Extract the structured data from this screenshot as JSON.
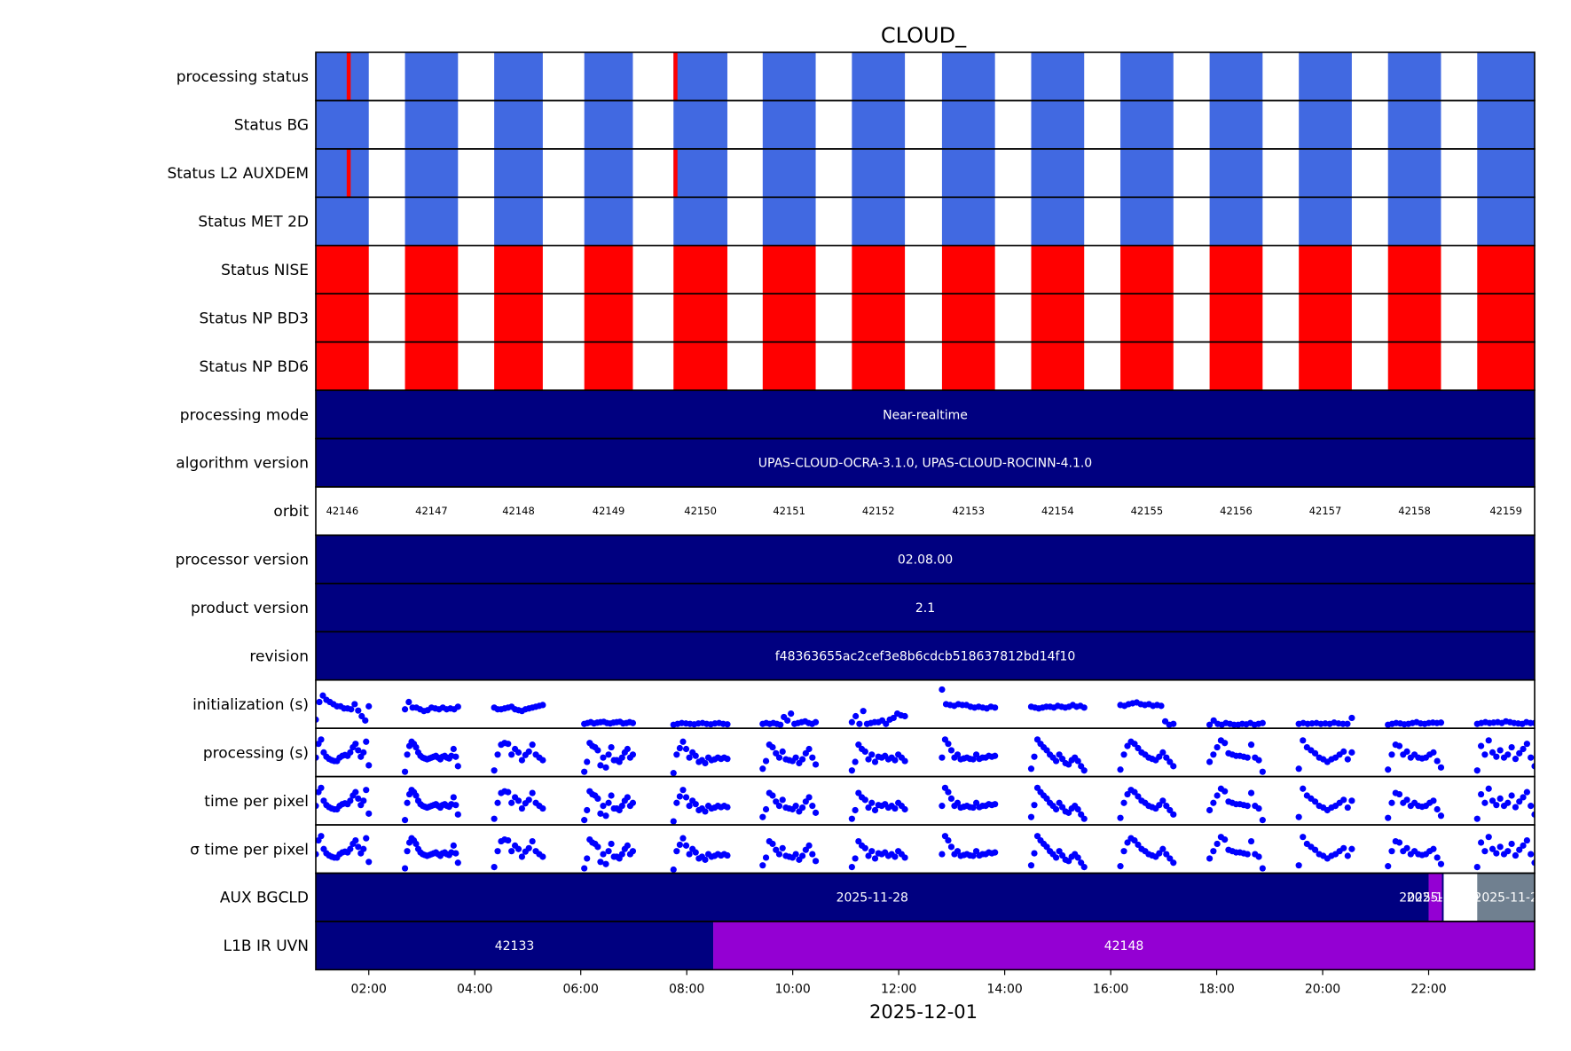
{
  "chart_data": {
    "type": "timeline",
    "title": "CLOUD_",
    "xlabel": "2025-12-01",
    "xlim": [
      "2025-12-01T01:00",
      "2025-12-02T00:00"
    ],
    "x_ticks": [
      "02:00",
      "04:00",
      "06:00",
      "08:00",
      "10:00",
      "12:00",
      "14:00",
      "16:00",
      "18:00",
      "20:00",
      "22:00"
    ],
    "grid": false,
    "colors": {
      "ok": "#4169e1",
      "fail": "#ff0000",
      "category": "#000080",
      "category_alt": "#9400d3",
      "category_gray": "#708090",
      "scatter": "#0000ff",
      "frame": "#000000"
    },
    "orbits": [
      {
        "orbit": "42146",
        "start": "01:00",
        "end": "02:00"
      },
      {
        "orbit": "42147",
        "start": "02:41",
        "end": "03:41"
      },
      {
        "orbit": "42148",
        "start": "04:22",
        "end": "05:17"
      },
      {
        "orbit": "42149",
        "start": "06:04",
        "end": "06:59"
      },
      {
        "orbit": "42150",
        "start": "07:45",
        "end": "08:46"
      },
      {
        "orbit": "42151",
        "start": "09:26",
        "end": "10:26"
      },
      {
        "orbit": "42152",
        "start": "11:07",
        "end": "12:07"
      },
      {
        "orbit": "42153",
        "start": "12:49",
        "end": "13:49"
      },
      {
        "orbit": "42154",
        "start": "14:30",
        "end": "15:30"
      },
      {
        "orbit": "42155",
        "start": "16:11",
        "end": "17:11"
      },
      {
        "orbit": "42156",
        "start": "17:52",
        "end": "18:52"
      },
      {
        "orbit": "42157",
        "start": "19:33",
        "end": "20:33"
      },
      {
        "orbit": "42158",
        "start": "21:14",
        "end": "22:14"
      },
      {
        "orbit": "42159",
        "start": "22:55",
        "end": "24:00"
      }
    ],
    "rows": [
      {
        "label": "processing status",
        "kind": "status",
        "color": "ok",
        "fail_marks": [
          "01:37",
          "07:47"
        ]
      },
      {
        "label": "Status BG",
        "kind": "status",
        "color": "ok",
        "fail_marks": []
      },
      {
        "label": "Status L2  AUXDEM",
        "kind": "status",
        "color": "ok",
        "fail_marks": [
          "01:37",
          "07:47"
        ]
      },
      {
        "label": "Status MET 2D",
        "kind": "status",
        "color": "ok",
        "fail_marks": []
      },
      {
        "label": "Status NISE",
        "kind": "status",
        "color": "fail",
        "fail_marks": []
      },
      {
        "label": "Status NP BD3",
        "kind": "status",
        "color": "fail",
        "fail_marks": []
      },
      {
        "label": "Status NP BD6",
        "kind": "status",
        "color": "fail",
        "fail_marks": []
      },
      {
        "label": "processing mode",
        "kind": "category",
        "segments": [
          {
            "start": "01:00",
            "end": "24:00",
            "text": "Near-realtime",
            "color": "category"
          }
        ]
      },
      {
        "label": "algorithm version",
        "kind": "category",
        "segments": [
          {
            "start": "01:00",
            "end": "24:00",
            "text": "UPAS-CLOUD-OCRA-3.1.0, UPAS-CLOUD-ROCINN-4.1.0",
            "color": "category"
          }
        ]
      },
      {
        "label": "orbit",
        "kind": "orbit"
      },
      {
        "label": "processor version",
        "kind": "category",
        "segments": [
          {
            "start": "01:00",
            "end": "24:00",
            "text": "02.08.00",
            "color": "category"
          }
        ]
      },
      {
        "label": "product version",
        "kind": "category",
        "segments": [
          {
            "start": "01:00",
            "end": "24:00",
            "text": "2.1",
            "color": "category"
          }
        ]
      },
      {
        "label": "revision",
        "kind": "category",
        "segments": [
          {
            "start": "01:00",
            "end": "24:00",
            "text": "f48363655ac2cef3e8b6cdcb518637812bd14f10",
            "color": "category"
          }
        ]
      },
      {
        "label": "initialization (s)",
        "kind": "scatter",
        "pattern": "init"
      },
      {
        "label": "processing (s)",
        "kind": "scatter",
        "pattern": "vshape"
      },
      {
        "label": "time per pixel",
        "kind": "scatter",
        "pattern": "vshape"
      },
      {
        "label": "σ time per pixel",
        "kind": "scatter",
        "pattern": "vshape"
      },
      {
        "label": "AUX BGCLD",
        "kind": "category",
        "segments": [
          {
            "start": "01:00",
            "end": "22:00",
            "text": "2025-11-28",
            "color": "category"
          },
          {
            "start": "22:00",
            "end": "22:15",
            "text": "2025-11-29",
            "color": "category_alt"
          },
          {
            "start": "22:15",
            "end": "22:17",
            "text": "2025-11-30",
            "color": "category"
          },
          {
            "start": "22:55",
            "end": "24:00",
            "text": "2025-11-2",
            "color": "category_gray"
          }
        ]
      },
      {
        "label": "L1B IR UVN",
        "kind": "category",
        "segments": [
          {
            "start": "01:00",
            "end": "08:30",
            "text": "42133",
            "color": "category"
          },
          {
            "start": "08:30",
            "end": "24:00",
            "text": "42148",
            "color": "category_alt"
          }
        ]
      }
    ],
    "scatter_series": {
      "init": [
        [
          0.86,
          0.45,
          0.3,
          0.4,
          0.45,
          0.5,
          0.55,
          0.55,
          0.6,
          0.6,
          0.62,
          0.5,
          0.65,
          0.78,
          0.88,
          0.55
        ],
        [
          0.62,
          0.45,
          0.58,
          0.58,
          0.62,
          0.66,
          0.64,
          0.58,
          0.6,
          0.62,
          0.58,
          0.62,
          0.6,
          0.62,
          0.56
        ],
        [
          0.58,
          0.62,
          0.62,
          0.6,
          0.58,
          0.56,
          0.62,
          0.64,
          0.66,
          0.62,
          0.6,
          0.58,
          0.56,
          0.54,
          0.52
        ],
        [
          0.96,
          0.94,
          0.92,
          0.95,
          0.93,
          0.92,
          0.91,
          0.94,
          0.95,
          0.93,
          0.92,
          0.91,
          0.95,
          0.94,
          0.92,
          0.94
        ],
        [
          0.98,
          0.96,
          0.94,
          0.95,
          0.96,
          0.97,
          0.95,
          0.94,
          0.96,
          0.97,
          0.95,
          0.94,
          0.96,
          0.97
        ],
        [
          0.96,
          0.94,
          0.96,
          0.94,
          0.96,
          0.98,
          0.8,
          0.88,
          0.72,
          0.96,
          0.94,
          0.92,
          0.9,
          0.94,
          0.96,
          0.92
        ],
        [
          0.92,
          0.78,
          0.96,
          0.66,
          0.96,
          0.94,
          0.92,
          0.92,
          0.88,
          0.96,
          0.86,
          0.82,
          0.72,
          0.76,
          0.78
        ],
        [
          0.16,
          0.5,
          0.52,
          0.54,
          0.5,
          0.52,
          0.52,
          0.56,
          0.58,
          0.56,
          0.58,
          0.6,
          0.56,
          0.58
        ],
        [
          0.56,
          0.58,
          0.6,
          0.58,
          0.56,
          0.56,
          0.58,
          0.54,
          0.56,
          0.58,
          0.56,
          0.52,
          0.56,
          0.54,
          0.58
        ],
        [
          0.52,
          0.54,
          0.5,
          0.48,
          0.46,
          0.5,
          0.52,
          0.5,
          0.54,
          0.52,
          0.54,
          0.9,
          0.98,
          0.96
        ],
        [
          0.98,
          0.88,
          0.96,
          0.98,
          0.94,
          0.96,
          0.98,
          0.98,
          0.96,
          0.97,
          0.94,
          0.98,
          0.96,
          0.94
        ],
        [
          0.96,
          0.94,
          0.96,
          0.95,
          0.94,
          0.96,
          0.95,
          0.96,
          0.93,
          0.95,
          0.96,
          0.96,
          0.82
        ],
        [
          0.98,
          0.96,
          0.94,
          0.95,
          0.97,
          0.96,
          0.94,
          0.92,
          0.95,
          0.96,
          0.94,
          0.93,
          0.94,
          0.93
        ],
        [
          0.96,
          0.94,
          0.92,
          0.94,
          0.93,
          0.92,
          0.94,
          0.9,
          0.92,
          0.94,
          0.95,
          0.96,
          0.92,
          0.94,
          0.94
        ]
      ],
      "vshape": [
        [
          0.62,
          0.3,
          0.2,
          0.5,
          0.6,
          0.65,
          0.68,
          0.7,
          0.7,
          0.62,
          0.58,
          0.56,
          0.58,
          0.5,
          0.38,
          0.3,
          0.45,
          0.6,
          0.5,
          0.25,
          0.8
        ],
        [
          0.95,
          0.55,
          0.35,
          0.25,
          0.3,
          0.38,
          0.5,
          0.58,
          0.62,
          0.64,
          0.66,
          0.64,
          0.62,
          0.6,
          0.58,
          0.62,
          0.66,
          0.6,
          0.58,
          0.62,
          0.64,
          0.58,
          0.42,
          0.6,
          0.82
        ],
        [
          0.92,
          0.55,
          0.32,
          0.28,
          0.3,
          0.55,
          0.42,
          0.5,
          0.68,
          0.56,
          0.48,
          0.32,
          0.55,
          0.62,
          0.68
        ],
        [
          0.95,
          0.72,
          0.28,
          0.35,
          0.38,
          0.45,
          0.8,
          0.62,
          0.85,
          0.55,
          0.38,
          0.68,
          0.68,
          0.72,
          0.62,
          0.5,
          0.42,
          0.62,
          0.55
        ],
        [
          0.98,
          0.55,
          0.4,
          0.25,
          0.42,
          0.62,
          0.5,
          0.58,
          0.72,
          0.68,
          0.75,
          0.62,
          0.68,
          0.66,
          0.62,
          0.65,
          0.62,
          0.65
        ],
        [
          0.88,
          0.7,
          0.32,
          0.38,
          0.52,
          0.62,
          0.48,
          0.66,
          0.68,
          0.7,
          0.62,
          0.75,
          0.66,
          0.52,
          0.42,
          0.62,
          0.78
        ],
        [
          0.92,
          0.72,
          0.32,
          0.42,
          0.48,
          0.66,
          0.55,
          0.72,
          0.6,
          0.62,
          0.58,
          0.66,
          0.62,
          0.68,
          0.55,
          0.62,
          0.7
        ],
        [
          0.62,
          0.2,
          0.3,
          0.45,
          0.62,
          0.55,
          0.66,
          0.64,
          0.62,
          0.65,
          0.66,
          0.55,
          0.65,
          0.62,
          0.62,
          0.58,
          0.6,
          0.58
        ],
        [
          0.88,
          0.6,
          0.2,
          0.3,
          0.38,
          0.45,
          0.55,
          0.62,
          0.7,
          0.55,
          0.65,
          0.75,
          0.78,
          0.68,
          0.62,
          0.7,
          0.82,
          0.92
        ],
        [
          0.9,
          0.55,
          0.35,
          0.25,
          0.3,
          0.4,
          0.5,
          0.55,
          0.62,
          0.65,
          0.68,
          0.6,
          0.5,
          0.62,
          0.72,
          0.82
        ],
        [
          0.72,
          0.55,
          0.38,
          0.22,
          0.28,
          0.52,
          0.55,
          0.58,
          0.58,
          0.6,
          0.62,
          0.32,
          0.62,
          0.68,
          0.95
        ],
        [
          0.88,
          0.22,
          0.38,
          0.45,
          0.52,
          0.62,
          0.66,
          0.72,
          0.66,
          0.62,
          0.55,
          0.48,
          0.66,
          0.5
        ],
        [
          0.9,
          0.55,
          0.32,
          0.35,
          0.55,
          0.48,
          0.62,
          0.55,
          0.62,
          0.64,
          0.62,
          0.55,
          0.5,
          0.7,
          0.85
        ],
        [
          0.92,
          0.35,
          0.55,
          0.22,
          0.5,
          0.6,
          0.45,
          0.62,
          0.55,
          0.38,
          0.65,
          0.52,
          0.42,
          0.3,
          0.62,
          0.82
        ]
      ]
    }
  }
}
